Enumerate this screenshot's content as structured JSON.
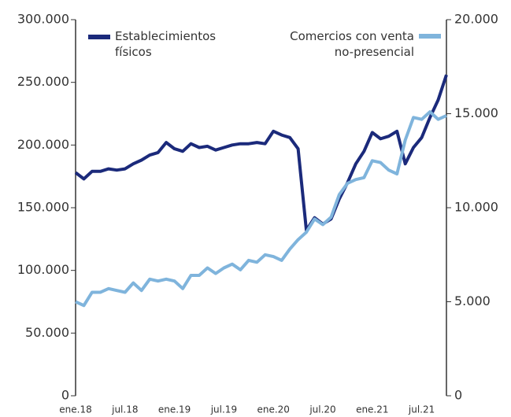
{
  "chart_data": {
    "type": "line",
    "categories": [
      "ene.18",
      null,
      null,
      null,
      null,
      null,
      "jul.18",
      null,
      null,
      null,
      null,
      null,
      "ene.19",
      null,
      null,
      null,
      null,
      null,
      "jul.19",
      null,
      null,
      null,
      null,
      null,
      "ene.20",
      null,
      null,
      null,
      null,
      null,
      "jul.20",
      null,
      null,
      null,
      null,
      null,
      "ene.21",
      null,
      null,
      null,
      null,
      null,
      "jul.21",
      null,
      null,
      null
    ],
    "series": [
      {
        "name": "Establecimientos físicos",
        "color": "#1b2a7b",
        "values": [
          178000,
          173000,
          179000,
          179000,
          181000,
          180000,
          181000,
          185000,
          188000,
          192000,
          194000,
          202000,
          197000,
          195000,
          201000,
          198000,
          199000,
          196000,
          198000,
          200000,
          201000,
          201000,
          202000,
          201000,
          211000,
          208000,
          206000,
          197000,
          132000,
          142000,
          137000,
          141000,
          157000,
          170000,
          185000,
          195000,
          210000,
          205000,
          207000,
          211000,
          185000,
          198000,
          206000,
          222000,
          236000,
          256000
        ]
      },
      {
        "name": "Comercios con venta no-presencial",
        "color": "#7fb4dc",
        "axis": "y2",
        "values": [
          5000,
          4800,
          5500,
          5500,
          5700,
          5600,
          5500,
          6000,
          5600,
          6200,
          6100,
          6200,
          6100,
          5700,
          6400,
          6400,
          6800,
          6500,
          6800,
          7000,
          6700,
          7200,
          7100,
          7500,
          7400,
          7200,
          7800,
          8300,
          8700,
          9400,
          9100,
          9500,
          10700,
          11300,
          11500,
          11600,
          12500,
          12400,
          12000,
          11800,
          13600,
          14800,
          14700,
          15100,
          14700,
          14900
        ]
      }
    ],
    "ylim": [
      0,
      300000
    ],
    "yticks": [
      0,
      {
        "value": 50000,
        "label": "50.000"
      },
      {
        "value": 100000,
        "label": "100.000"
      },
      {
        "value": 150000,
        "label": "150.000"
      },
      {
        "value": 200000,
        "label": "200.000"
      },
      {
        "value": 250000,
        "label": "250.000"
      },
      {
        "value": 300000,
        "label": "300.000"
      }
    ],
    "y2lim": [
      0,
      20000
    ],
    "y2ticks": [
      0,
      {
        "value": 5000,
        "label": "5.000"
      },
      {
        "value": 10000,
        "label": "10.000"
      },
      {
        "value": 15000,
        "label": "15.000"
      },
      {
        "value": 20000,
        "label": "20.000"
      }
    ],
    "grid": false
  }
}
